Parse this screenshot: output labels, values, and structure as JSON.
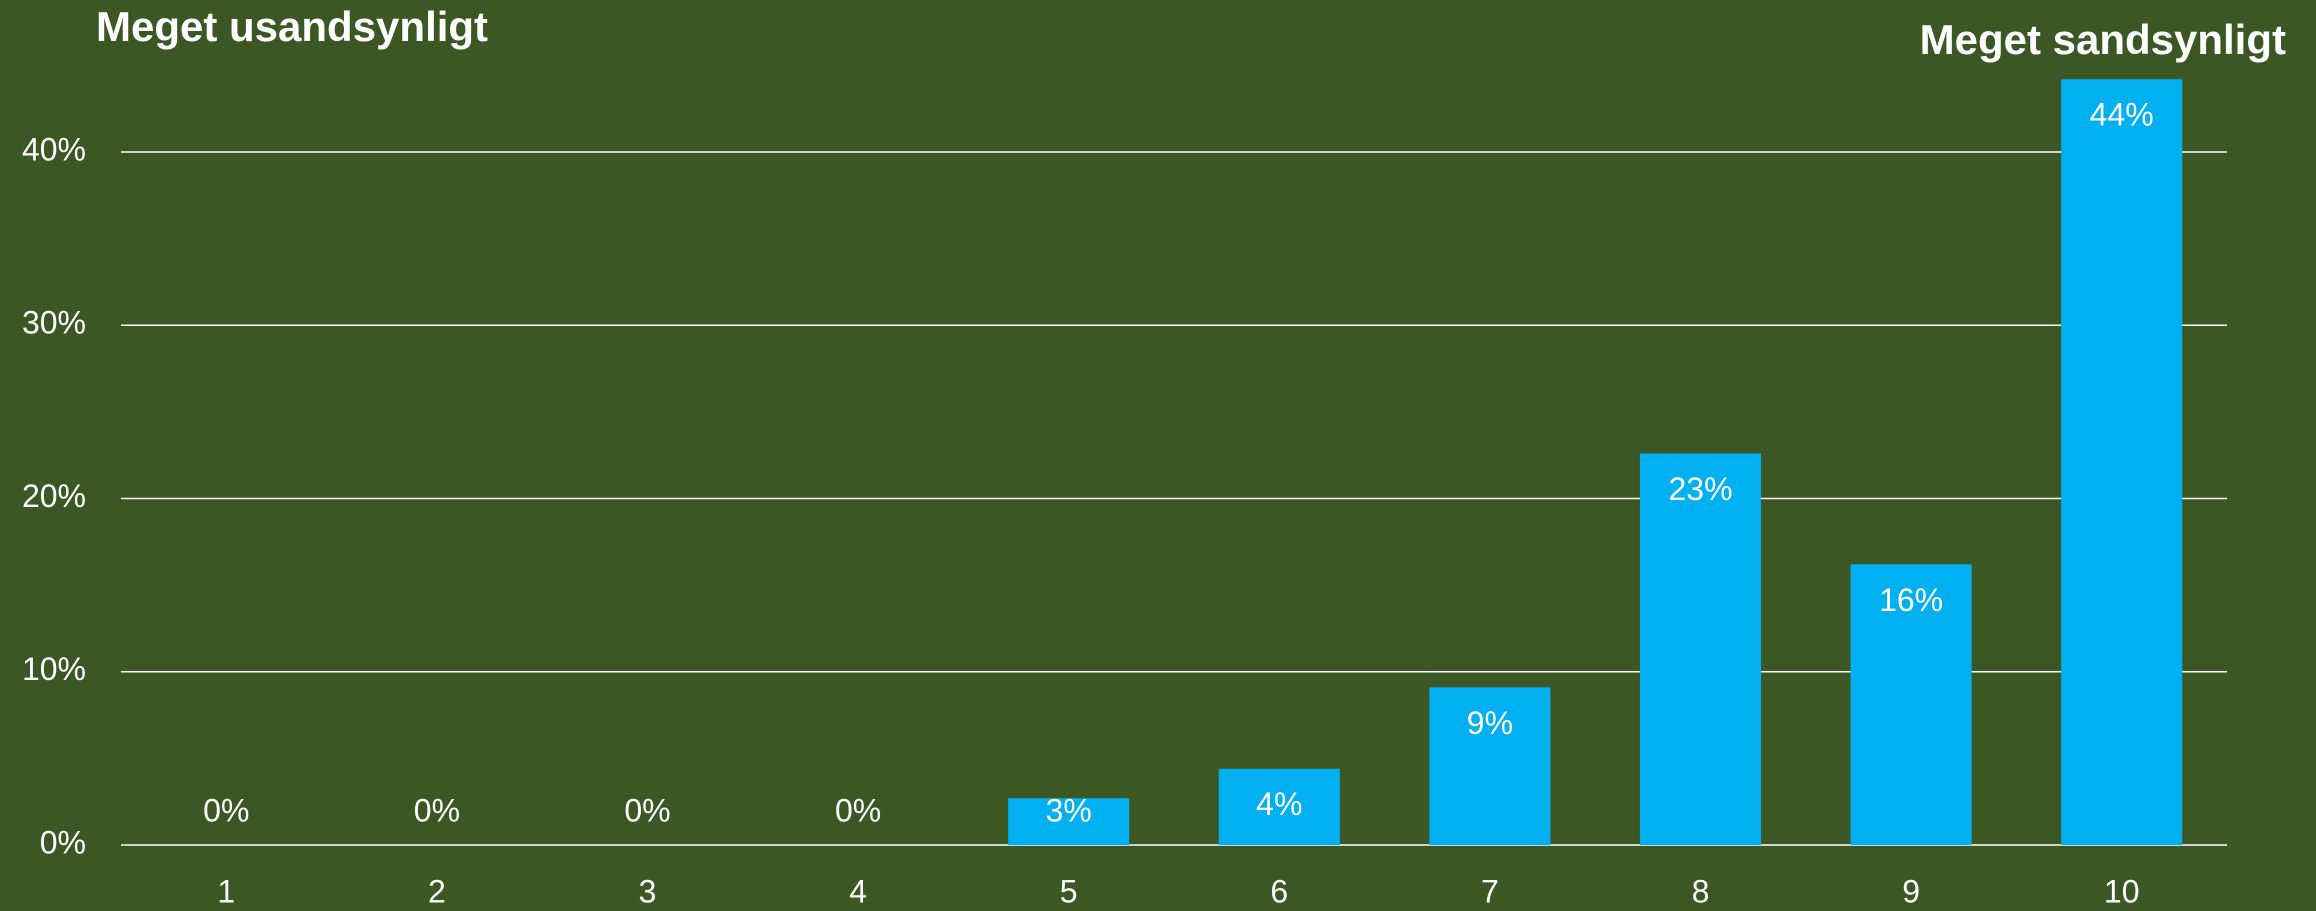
{
  "chart_data": {
    "type": "bar",
    "annotations": [
      "Meget usandsynligt",
      "Meget sandsynligt"
    ],
    "categories": [
      "1",
      "2",
      "3",
      "4",
      "5",
      "6",
      "7",
      "8",
      "9",
      "10"
    ],
    "values": [
      0,
      0,
      0,
      0,
      2.7,
      4.4,
      9.1,
      22.6,
      16.2,
      44.2
    ],
    "value_labels": [
      "0%",
      "0%",
      "0%",
      "0%",
      "3%",
      "4%",
      "9%",
      "23%",
      "16%",
      "44%"
    ],
    "color": "#00b0f0",
    "ylim": [
      0,
      45
    ],
    "yticks": [
      {
        "value": 0,
        "label": "0%"
      },
      {
        "value": 10,
        "label": "10%"
      },
      {
        "value": 20,
        "label": "20%"
      },
      {
        "value": 30,
        "label": "30%"
      },
      {
        "value": 40,
        "label": "40%"
      }
    ],
    "grid": true
  }
}
